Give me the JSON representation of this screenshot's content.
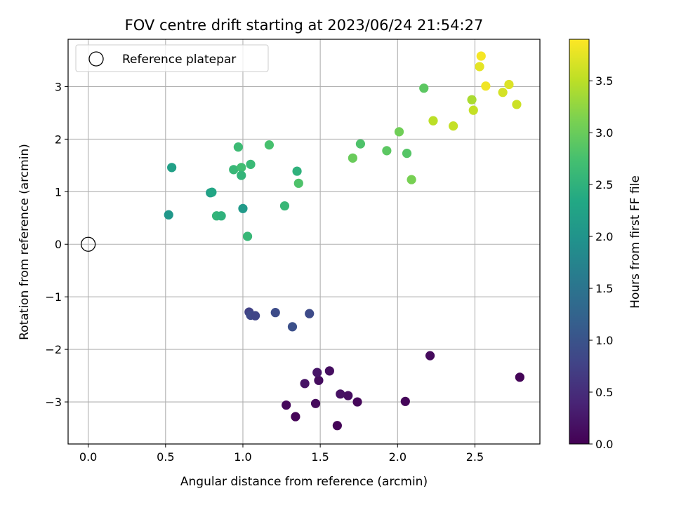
{
  "chart_data": {
    "type": "scatter",
    "title": "FOV centre drift starting at 2023/06/24 21:54:27",
    "xlabel": "Angular distance from reference (arcmin)",
    "ylabel": "Rotation from reference (arcmin)",
    "xlim": [
      -0.13,
      2.92
    ],
    "ylim": [
      -3.8,
      3.9
    ],
    "x_ticks": [
      0.0,
      0.5,
      1.0,
      1.5,
      2.0,
      2.5
    ],
    "x_tick_labels": [
      "0.0",
      "0.5",
      "1.0",
      "1.5",
      "2.0",
      "2.5"
    ],
    "y_ticks": [
      -3,
      -2,
      -1,
      0,
      1,
      2,
      3
    ],
    "y_tick_labels": [
      "−3",
      "−2",
      "−1",
      "0",
      "1",
      "2",
      "3"
    ],
    "grid": true,
    "legend": {
      "placement": "top-left",
      "entries": [
        "Reference platepar"
      ]
    },
    "reference_point": {
      "x": 0.0,
      "y": 0.0
    },
    "colorbar": {
      "label": "Hours from first FF file",
      "colormap": "viridis",
      "range": [
        0.0,
        3.9
      ],
      "ticks": [
        0.0,
        0.5,
        1.0,
        1.5,
        2.0,
        2.5,
        3.0,
        3.5
      ],
      "tick_labels": [
        "0.0",
        "0.5",
        "1.0",
        "1.5",
        "2.0",
        "2.5",
        "3.0",
        "3.5"
      ]
    },
    "points": [
      {
        "x": 1.34,
        "y": -3.28,
        "c": 0.05
      },
      {
        "x": 1.28,
        "y": -3.06,
        "c": 0.08
      },
      {
        "x": 1.47,
        "y": -3.03,
        "c": 0.1
      },
      {
        "x": 1.61,
        "y": -3.45,
        "c": 0.03
      },
      {
        "x": 1.74,
        "y": -3.0,
        "c": 0.07
      },
      {
        "x": 1.68,
        "y": -2.88,
        "c": 0.15
      },
      {
        "x": 1.63,
        "y": -2.85,
        "c": 0.18
      },
      {
        "x": 1.49,
        "y": -2.59,
        "c": 0.12
      },
      {
        "x": 1.4,
        "y": -2.65,
        "c": 0.2
      },
      {
        "x": 1.48,
        "y": -2.44,
        "c": 0.22
      },
      {
        "x": 1.56,
        "y": -2.41,
        "c": 0.14
      },
      {
        "x": 2.05,
        "y": -2.99,
        "c": 0.06
      },
      {
        "x": 2.21,
        "y": -2.12,
        "c": 0.1
      },
      {
        "x": 2.79,
        "y": -2.53,
        "c": 0.04
      },
      {
        "x": 1.04,
        "y": -1.29,
        "c": 0.75
      },
      {
        "x": 1.05,
        "y": -1.35,
        "c": 0.85
      },
      {
        "x": 1.08,
        "y": -1.36,
        "c": 0.8
      },
      {
        "x": 1.21,
        "y": -1.3,
        "c": 0.9
      },
      {
        "x": 1.32,
        "y": -1.57,
        "c": 0.95
      },
      {
        "x": 1.43,
        "y": -1.32,
        "c": 0.88
      },
      {
        "x": 0.52,
        "y": 0.56,
        "c": 2.05
      },
      {
        "x": 0.54,
        "y": 1.46,
        "c": 2.2
      },
      {
        "x": 0.79,
        "y": 0.98,
        "c": 2.15
      },
      {
        "x": 0.8,
        "y": 0.99,
        "c": 2.3
      },
      {
        "x": 0.83,
        "y": 0.54,
        "c": 2.55
      },
      {
        "x": 0.86,
        "y": 0.54,
        "c": 2.5
      },
      {
        "x": 0.94,
        "y": 1.42,
        "c": 2.6
      },
      {
        "x": 0.97,
        "y": 1.85,
        "c": 2.65
      },
      {
        "x": 0.99,
        "y": 1.46,
        "c": 2.7
      },
      {
        "x": 0.99,
        "y": 1.31,
        "c": 2.55
      },
      {
        "x": 1.0,
        "y": 0.68,
        "c": 2.1
      },
      {
        "x": 1.03,
        "y": 0.15,
        "c": 2.6
      },
      {
        "x": 1.05,
        "y": 1.52,
        "c": 2.62
      },
      {
        "x": 1.17,
        "y": 1.89,
        "c": 2.75
      },
      {
        "x": 1.27,
        "y": 0.73,
        "c": 2.6
      },
      {
        "x": 1.35,
        "y": 1.39,
        "c": 2.5
      },
      {
        "x": 1.36,
        "y": 1.16,
        "c": 2.8
      },
      {
        "x": 1.71,
        "y": 1.64,
        "c": 3.0
      },
      {
        "x": 1.76,
        "y": 1.91,
        "c": 2.8
      },
      {
        "x": 1.93,
        "y": 1.78,
        "c": 2.9
      },
      {
        "x": 2.01,
        "y": 2.14,
        "c": 3.05
      },
      {
        "x": 2.06,
        "y": 1.73,
        "c": 2.85
      },
      {
        "x": 2.09,
        "y": 1.23,
        "c": 3.1
      },
      {
        "x": 2.17,
        "y": 2.97,
        "c": 2.9
      },
      {
        "x": 2.23,
        "y": 2.35,
        "c": 3.5
      },
      {
        "x": 2.36,
        "y": 2.25,
        "c": 3.55
      },
      {
        "x": 2.48,
        "y": 2.75,
        "c": 3.4
      },
      {
        "x": 2.49,
        "y": 2.55,
        "c": 3.55
      },
      {
        "x": 2.53,
        "y": 3.38,
        "c": 3.75
      },
      {
        "x": 2.54,
        "y": 3.58,
        "c": 3.85
      },
      {
        "x": 2.57,
        "y": 3.01,
        "c": 3.82
      },
      {
        "x": 2.68,
        "y": 2.89,
        "c": 3.65
      },
      {
        "x": 2.72,
        "y": 3.04,
        "c": 3.7
      },
      {
        "x": 2.77,
        "y": 2.66,
        "c": 3.6
      }
    ]
  }
}
